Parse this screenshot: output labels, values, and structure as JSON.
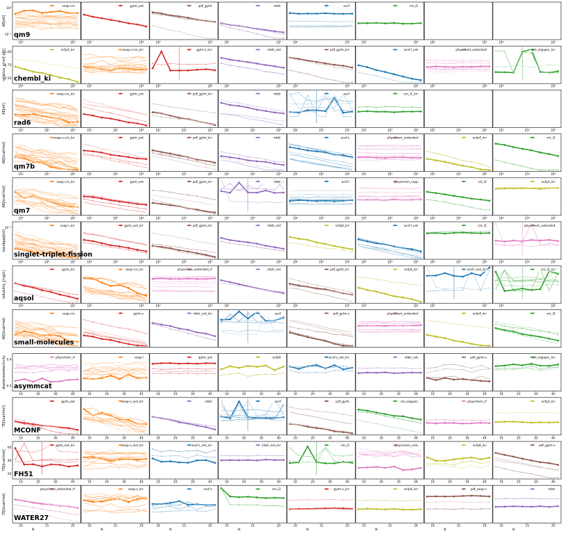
{
  "figure": {
    "xlabel": "N",
    "rows": [
      {
        "dataset": "qm9",
        "ylabel": "AE[eV]",
        "xscale": "log",
        "xticks": [
          "10²",
          "10³"
        ],
        "yticks": [
          "10⁰",
          "10⁻¹"
        ],
        "panels": [
          {
            "method": "soap-crs",
            "color": "#ff7f0e",
            "n_lines": 18,
            "trend": "flat_noisy"
          },
          {
            "method": "gylm_ext",
            "color": "#d62728",
            "n_lines": 1,
            "trend": "down"
          },
          {
            "method": "pdf_gylm",
            "color": "#8c564b",
            "n_lines": 3,
            "trend": "down"
          },
          {
            "method": "mbtr",
            "color": "#9467bd",
            "n_lines": 3,
            "trend": "down"
          },
          {
            "method": "acsf",
            "color": "#1f77b4",
            "n_lines": 5,
            "trend": "flat"
          },
          {
            "method": "cm_l2",
            "color": "#2ca02c",
            "n_lines": 1,
            "trend": "flat"
          }
        ]
      },
      {
        "dataset": "chembl_ki",
        "ylabel": "relative_error[-pKi]",
        "xscale": "log",
        "xticks": [
          "10³",
          "10⁴"
        ],
        "yticks": [
          "1.00",
          "0.75",
          "0.50"
        ],
        "panels": [
          {
            "method": "ecfp4_krr",
            "color": "#bcbd22",
            "n_lines": 2,
            "trend": "down"
          },
          {
            "method": "soap-s-crs_krr",
            "color": "#ff7f0e",
            "n_lines": 14,
            "trend": "flat_noisy"
          },
          {
            "method": "gylm-s_krr",
            "color": "#d62728",
            "n_lines": 2,
            "trend": "spiky"
          },
          {
            "method": "mbtr_ext",
            "color": "#9467bd",
            "n_lines": 2,
            "trend": "down"
          },
          {
            "method": "pdf_gylm_krr",
            "color": "#8c564b",
            "n_lines": 3,
            "trend": "down"
          },
          {
            "method": "acsf-l_ext",
            "color": "#1f77b4",
            "n_lines": 2,
            "trend": "down"
          },
          {
            "method": "physchem_extended",
            "color": "#e377c2",
            "n_lines": 6,
            "trend": "flat"
          },
          {
            "method": "cm_eigspec_krr",
            "color": "#2ca02c",
            "n_lines": 3,
            "trend": "spiky"
          }
        ]
      },
      {
        "dataset": "rad6",
        "ylabel": "AE[eV]",
        "xscale": "log",
        "xticks": [
          "10²",
          "10³",
          "10⁴"
        ],
        "yticks": [],
        "panels": [
          {
            "method": "soap-crs_krr",
            "color": "#ff7f0e",
            "n_lines": 20,
            "trend": "down_noisy"
          },
          {
            "method": "gylm_ext",
            "color": "#d62728",
            "n_lines": 4,
            "trend": "down"
          },
          {
            "method": "pdf_gylm_krr",
            "color": "#8c564b",
            "n_lines": 4,
            "trend": "down"
          },
          {
            "method": "mbtr",
            "color": "#9467bd",
            "n_lines": 4,
            "trend": "down"
          },
          {
            "method": "acsf",
            "color": "#1f77b4",
            "n_lines": 6,
            "trend": "spiky"
          },
          {
            "method": "cm_l2_krr",
            "color": "#2ca02c",
            "n_lines": 2,
            "trend": "flat"
          }
        ]
      },
      {
        "dataset": "qm7b",
        "ylabel": "AE[kcal/mol]",
        "xscale": "log",
        "xticks": [
          "10²",
          "10³",
          "10⁴"
        ],
        "yticks": [],
        "panels": [
          {
            "method": "soap-s-crs_krr",
            "color": "#ff7f0e",
            "n_lines": 18,
            "trend": "down_noisy"
          },
          {
            "method": "gylm_ext",
            "color": "#d62728",
            "n_lines": 4,
            "trend": "down"
          },
          {
            "method": "pdf_gylm_krr",
            "color": "#8c564b",
            "n_lines": 4,
            "trend": "down"
          },
          {
            "method": "mbtr",
            "color": "#9467bd",
            "n_lines": 4,
            "trend": "down"
          },
          {
            "method": "acsf-s",
            "color": "#1f77b4",
            "n_lines": 8,
            "trend": "down"
          },
          {
            "method": "physchem_extended",
            "color": "#e377c2",
            "n_lines": 8,
            "trend": "flat"
          },
          {
            "method": "ecfp4_krr",
            "color": "#bcbd22",
            "n_lines": 2,
            "trend": "down"
          },
          {
            "method": "cm_l2",
            "color": "#2ca02c",
            "n_lines": 2,
            "trend": "down"
          }
        ]
      },
      {
        "dataset": "qm7",
        "ylabel": "AE[kcal/mol]",
        "xscale": "log",
        "xticks": [
          "10²",
          "10³",
          "10⁴"
        ],
        "yticks": [],
        "panels": [
          {
            "method": "soap-crs_krr",
            "color": "#ff7f0e",
            "n_lines": 18,
            "trend": "down_noisy"
          },
          {
            "method": "gylm_ext",
            "color": "#d62728",
            "n_lines": 4,
            "trend": "down"
          },
          {
            "method": "pdf_gylm_krr",
            "color": "#8c564b",
            "n_lines": 4,
            "trend": "down"
          },
          {
            "method": "mbtr",
            "color": "#9467bd",
            "n_lines": 4,
            "trend": "spiky"
          },
          {
            "method": "acsf-l",
            "color": "#1f77b4",
            "n_lines": 8,
            "trend": "flat"
          },
          {
            "method": "physchem_rapp",
            "color": "#e377c2",
            "n_lines": 8,
            "trend": "flat"
          },
          {
            "method": "cm_l2",
            "color": "#2ca02c",
            "n_lines": 2,
            "trend": "down"
          },
          {
            "method": "ecfp4_krr",
            "color": "#bcbd22",
            "n_lines": 2,
            "trend": "flat"
          }
        ]
      },
      {
        "dataset": "singlet-triplet-fission",
        "ylabel": "bandgap[eV]",
        "xscale": "log",
        "xticks": [
          "10²",
          "10³",
          "10⁴"
        ],
        "yticks": [
          "10⁻¹"
        ],
        "panels": [
          {
            "method": "soap-l_krr",
            "color": "#ff7f0e",
            "n_lines": 18,
            "trend": "down_noisy"
          },
          {
            "method": "gylm_ext_krr",
            "color": "#d62728",
            "n_lines": 4,
            "trend": "down"
          },
          {
            "method": "pdf_gylm_krr",
            "color": "#8c564b",
            "n_lines": 4,
            "trend": "down"
          },
          {
            "method": "mbtr_ext",
            "color": "#9467bd",
            "n_lines": 2,
            "trend": "down"
          },
          {
            "method": "ecfp4_krr",
            "color": "#bcbd22",
            "n_lines": 2,
            "trend": "down"
          },
          {
            "method": "acsf-l_ext",
            "color": "#1f77b4",
            "n_lines": 6,
            "trend": "down"
          },
          {
            "method": "cm_l2",
            "color": "#2ca02c",
            "n_lines": 2,
            "trend": "flat"
          },
          {
            "method": "physchem_extended",
            "color": "#e377c2",
            "n_lines": 3,
            "trend": "spiky"
          }
        ]
      },
      {
        "dataset": "aqsol",
        "ylabel": "solubility_[mg/L]",
        "xscale": "log",
        "xticks": [
          "10²",
          "10³"
        ],
        "yticks": [],
        "panels": [
          {
            "method": "gylm_krr",
            "color": "#d62728",
            "n_lines": 3,
            "trend": "down"
          },
          {
            "method": "soap-crs_krr",
            "color": "#ff7f0e",
            "n_lines": 12,
            "trend": "down_noisy"
          },
          {
            "method": "physchem_extended_rf",
            "color": "#e377c2",
            "n_lines": 8,
            "trend": "flat"
          },
          {
            "method": "mbtr_ext",
            "color": "#9467bd",
            "n_lines": 2,
            "trend": "down"
          },
          {
            "method": "pdf_gylm_krr",
            "color": "#8c564b",
            "n_lines": 4,
            "trend": "down"
          },
          {
            "method": "ecfp4_krr",
            "color": "#bcbd22",
            "n_lines": 2,
            "trend": "down"
          },
          {
            "method": "acsf-l_ext_krr",
            "color": "#1f77b4",
            "n_lines": 3,
            "trend": "spiky"
          },
          {
            "method": "cm_l2_krr",
            "color": "#2ca02c",
            "n_lines": 6,
            "trend": "spiky"
          }
        ]
      },
      {
        "dataset": "small-molecules",
        "ylabel": "AE[kcal/mol]",
        "xscale": "linear",
        "xticks": [],
        "yticks": [],
        "panels": [
          {
            "method": "soap-crs",
            "color": "#ff7f0e",
            "n_lines": 18,
            "trend": "down_noisy"
          },
          {
            "method": "gylm-s",
            "color": "#d62728",
            "n_lines": 6,
            "trend": "down"
          },
          {
            "method": "mbtr_ext_krr",
            "color": "#9467bd",
            "n_lines": 2,
            "trend": "down"
          },
          {
            "method": "acsf",
            "color": "#1f77b4",
            "n_lines": 6,
            "trend": "spiky"
          },
          {
            "method": "pdf_gylm-s",
            "color": "#8c564b",
            "n_lines": 5,
            "trend": "down"
          },
          {
            "method": "physchem_extended",
            "color": "#e377c2",
            "n_lines": 8,
            "trend": "flat"
          },
          {
            "method": "ecfp4_krr",
            "color": "#bcbd22",
            "n_lines": 2,
            "trend": "down"
          },
          {
            "method": "cm_l2",
            "color": "#2ca02c",
            "n_lines": 4,
            "trend": "down"
          }
        ]
      },
      {
        "dataset": "asymmcat",
        "ylabel": "diastereoselectivity",
        "xscale": "linear",
        "xticks": [
          "10",
          "20",
          "30",
          "40"
        ],
        "yticks": [
          "0.4",
          "0.3"
        ],
        "panels": [
          {
            "method": "physchem_rf",
            "color": "#e377c2",
            "n_lines": 6,
            "trend": "flat_noisy"
          },
          {
            "method": "soap-l",
            "color": "#ff7f0e",
            "n_lines": 12,
            "trend": "flat_noisy"
          },
          {
            "method": "gylm_ext",
            "color": "#d62728",
            "n_lines": 4,
            "trend": "flat"
          },
          {
            "method": "ecfp6",
            "color": "#bcbd22",
            "n_lines": 2,
            "trend": "flat_noisy"
          },
          {
            "method": "acsf-s_ext_krr",
            "color": "#1f77b4",
            "n_lines": 3,
            "trend": "flat_noisy"
          },
          {
            "method": "mbtr_ext",
            "color": "#9467bd",
            "n_lines": 2,
            "trend": "flat"
          },
          {
            "method": "pdf_gylm-s",
            "color": "#8c564b",
            "n_lines": 4,
            "trend": "flat_noisy"
          },
          {
            "method": "cm_eigspec_krr",
            "color": "#2ca02c",
            "n_lines": 3,
            "trend": "flat_noisy"
          }
        ]
      },
      {
        "dataset": "MCONF",
        "ylabel": "TE[kcal/mol]",
        "xscale": "linear",
        "xticks": [
          "10",
          "20",
          "30",
          "40"
        ],
        "yticks": [],
        "panels": [
          {
            "method": "gylm_ext",
            "color": "#d62728",
            "n_lines": 3,
            "trend": "down"
          },
          {
            "method": "soap-s_ext_krr",
            "color": "#ff7f0e",
            "n_lines": 12,
            "trend": "down_noisy"
          },
          {
            "method": "mbtr",
            "color": "#9467bd",
            "n_lines": 2,
            "trend": "down"
          },
          {
            "method": "acsf",
            "color": "#1f77b4",
            "n_lines": 8,
            "trend": "spiky"
          },
          {
            "method": "pdf_gylm",
            "color": "#8c564b",
            "n_lines": 4,
            "trend": "down"
          },
          {
            "method": "cm_eigspec",
            "color": "#2ca02c",
            "n_lines": 3,
            "trend": "down"
          },
          {
            "method": "physchem_rf",
            "color": "#e377c2",
            "n_lines": 2,
            "trend": "flat"
          },
          {
            "method": "ecfp4_krr",
            "color": "#bcbd22",
            "n_lines": 2,
            "trend": "flat"
          }
        ]
      },
      {
        "dataset": "FH51",
        "ylabel": "TE[kcal/mol]",
        "xscale": "linear",
        "xticks": [
          "10",
          "20",
          "30",
          "40"
        ],
        "yticks": [
          "60",
          "40",
          "20"
        ],
        "panels": [
          {
            "method": "gylm_ext_krr",
            "color": "#d62728",
            "n_lines": 4,
            "trend": "spiky"
          },
          {
            "method": "soap-s_ext_krr",
            "color": "#ff7f0e",
            "n_lines": 12,
            "trend": "flat_noisy"
          },
          {
            "method": "acsf-s_ext_krr",
            "color": "#1f77b4",
            "n_lines": 3,
            "trend": "flat_noisy"
          },
          {
            "method": "mbtr_ext_krr",
            "color": "#9467bd",
            "n_lines": 2,
            "trend": "flat"
          },
          {
            "method": "cm_l2",
            "color": "#2ca02c",
            "n_lines": 3,
            "trend": "spiky"
          },
          {
            "method": "physchem_core",
            "color": "#e377c2",
            "n_lines": 6,
            "trend": "flat_noisy"
          },
          {
            "method": "ecfp6_krr",
            "color": "#bcbd22",
            "n_lines": 3,
            "trend": "flat_noisy"
          },
          {
            "method": "pdf_gylm-s",
            "color": "#8c564b",
            "n_lines": 4,
            "trend": "down"
          }
        ]
      },
      {
        "dataset": "WATER27",
        "ylabel": "TE[kcal/mol]",
        "xscale": "linear",
        "xticks": [
          "10",
          "15",
          "20"
        ],
        "yticks": [],
        "panels": [
          {
            "method": "physchem_extended_rf",
            "color": "#e377c2",
            "n_lines": 4,
            "trend": "down"
          },
          {
            "method": "soap-s_krr",
            "color": "#ff7f0e",
            "n_lines": 12,
            "trend": "flat_noisy"
          },
          {
            "method": "acsf-s",
            "color": "#1f77b4",
            "n_lines": 4,
            "trend": "flat_noisy"
          },
          {
            "method": "cm_l2",
            "color": "#2ca02c",
            "n_lines": 2,
            "trend": "drop"
          },
          {
            "method": "gylm-s_krr",
            "color": "#d62728",
            "n_lines": 3,
            "trend": "flat"
          },
          {
            "method": "ecfp4_krr",
            "color": "#bcbd22",
            "n_lines": 2,
            "trend": "flat"
          },
          {
            "method": "pdf_soap-s",
            "color": "#8c564b",
            "n_lines": 3,
            "trend": "flat"
          },
          {
            "method": "mbtr",
            "color": "#9467bd",
            "n_lines": 2,
            "trend": "flat"
          }
        ]
      }
    ]
  }
}
